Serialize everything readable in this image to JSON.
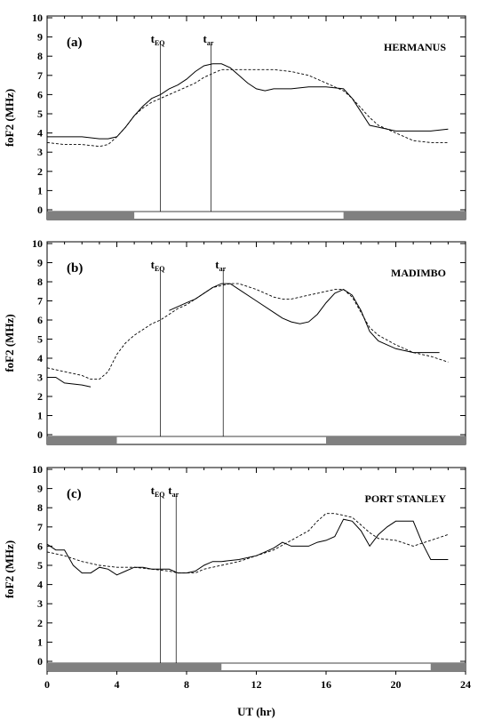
{
  "chart_data": [
    {
      "type": "line",
      "panel_label": "(a)",
      "station": "HERMANUS",
      "ylabel": "foF2 (MHz)",
      "xlabel": "",
      "xlim": [
        0,
        24
      ],
      "ylim": [
        0,
        10
      ],
      "yticks": [
        "0",
        "1",
        "2",
        "3",
        "4",
        "5",
        "6",
        "7",
        "8",
        "9",
        "10"
      ],
      "xticks": [],
      "t_EQ": 6.5,
      "t_ar": 9.4,
      "t_EQ_label": "t",
      "t_EQ_sub": "EQ",
      "t_ar_label": "t",
      "t_ar_sub": "ar",
      "night_bars": [
        [
          0,
          5.0
        ],
        [
          17.0,
          24
        ]
      ],
      "series": [
        {
          "style": "solid",
          "x": [
            0,
            1,
            2,
            3,
            3.5,
            4,
            4.5,
            5,
            5.5,
            6,
            6.5,
            7,
            7.5,
            8,
            8.5,
            9,
            9.5,
            10,
            10.5,
            11,
            11.5,
            12,
            12.5,
            13,
            14,
            15,
            16,
            17,
            17.5,
            18,
            18.5,
            19,
            19.5,
            20,
            21,
            22,
            23
          ],
          "y": [
            3.8,
            3.8,
            3.8,
            3.7,
            3.7,
            3.8,
            4.3,
            4.9,
            5.4,
            5.8,
            6.0,
            6.3,
            6.5,
            6.8,
            7.2,
            7.5,
            7.6,
            7.6,
            7.4,
            7.0,
            6.6,
            6.3,
            6.2,
            6.3,
            6.3,
            6.4,
            6.4,
            6.3,
            5.8,
            5.1,
            4.4,
            4.3,
            4.2,
            4.1,
            4.1,
            4.1,
            4.2
          ]
        },
        {
          "style": "dashed",
          "x": [
            0,
            1,
            2,
            3,
            3.5,
            4,
            4.5,
            5,
            5.5,
            6,
            6.5,
            7,
            7.5,
            8,
            8.5,
            9,
            9.5,
            10,
            10.5,
            11,
            12,
            13,
            14,
            15,
            16,
            17,
            17.5,
            18,
            18.5,
            19,
            20,
            21,
            22,
            23
          ],
          "y": [
            3.5,
            3.4,
            3.4,
            3.3,
            3.4,
            3.8,
            4.3,
            4.9,
            5.3,
            5.6,
            5.8,
            6.0,
            6.2,
            6.4,
            6.6,
            6.9,
            7.1,
            7.3,
            7.3,
            7.3,
            7.3,
            7.3,
            7.2,
            7.0,
            6.6,
            6.2,
            5.8,
            5.3,
            4.8,
            4.4,
            4.0,
            3.6,
            3.5,
            3.5
          ]
        }
      ]
    },
    {
      "type": "line",
      "panel_label": "(b)",
      "station": "MADIMBO",
      "ylabel": "foF2 (MHz)",
      "xlabel": "",
      "xlim": [
        0,
        24
      ],
      "ylim": [
        0,
        10
      ],
      "yticks": [
        "0",
        "1",
        "2",
        "3",
        "4",
        "5",
        "6",
        "7",
        "8",
        "9",
        "10"
      ],
      "xticks": [],
      "t_EQ": 6.5,
      "t_ar": 10.1,
      "t_EQ_label": "t",
      "t_EQ_sub": "EQ",
      "t_ar_label": "t",
      "t_ar_sub": "ar",
      "night_bars": [
        [
          0,
          4.0
        ],
        [
          16.0,
          24
        ]
      ],
      "series": [
        {
          "style": "solid",
          "x": [
            0,
            0.5,
            1,
            2,
            2.5
          ],
          "y": [
            3.0,
            3.0,
            2.7,
            2.6,
            2.5
          ]
        },
        {
          "style": "solid",
          "x": [
            7,
            7.5,
            8,
            8.5,
            9,
            9.5,
            10,
            10.5,
            11,
            12,
            13,
            13.5,
            14,
            14.5,
            15,
            15.5,
            16,
            16.5,
            17,
            17.5,
            18,
            18.5,
            19,
            20,
            21,
            22,
            22.5
          ],
          "y": [
            6.5,
            6.7,
            6.9,
            7.1,
            7.4,
            7.7,
            7.9,
            7.9,
            7.6,
            7.0,
            6.4,
            6.1,
            5.9,
            5.8,
            5.9,
            6.3,
            6.9,
            7.4,
            7.6,
            7.3,
            6.5,
            5.4,
            4.9,
            4.5,
            4.3,
            4.3,
            4.3
          ]
        },
        {
          "style": "dashed",
          "x": [
            0,
            1,
            2,
            2.5,
            3,
            3.5,
            4,
            4.5,
            5,
            5.5,
            6,
            6.5,
            7,
            7.5,
            8,
            8.5,
            9,
            9.5,
            10,
            10.5,
            11,
            12,
            13,
            13.5,
            14,
            15,
            16,
            16.5,
            17,
            17.5,
            18,
            18.5,
            19,
            20,
            21,
            22,
            23
          ],
          "y": [
            3.5,
            3.3,
            3.1,
            2.9,
            2.9,
            3.3,
            4.2,
            4.8,
            5.2,
            5.5,
            5.8,
            6.0,
            6.3,
            6.6,
            6.8,
            7.1,
            7.4,
            7.7,
            7.8,
            7.9,
            7.9,
            7.6,
            7.2,
            7.1,
            7.1,
            7.3,
            7.5,
            7.6,
            7.6,
            7.2,
            6.4,
            5.6,
            5.2,
            4.7,
            4.3,
            4.1,
            3.8
          ]
        }
      ]
    },
    {
      "type": "line",
      "panel_label": "(c)",
      "station": "PORT STANLEY",
      "ylabel": "foF2 (MHz)",
      "xlabel": "UT (hr)",
      "xlim": [
        0,
        24
      ],
      "ylim": [
        0,
        10
      ],
      "yticks": [
        "0",
        "1",
        "2",
        "3",
        "4",
        "5",
        "6",
        "7",
        "8",
        "9",
        "10"
      ],
      "xticks": [
        "0",
        "4",
        "8",
        "12",
        "16",
        "20",
        "24"
      ],
      "t_EQ": 6.5,
      "t_ar": 7.4,
      "t_EQ_label": "t",
      "t_EQ_sub": "EQ",
      "t_ar_label": "t",
      "t_ar_sub": "ar",
      "night_bars": [
        [
          0,
          10.0
        ],
        [
          22.0,
          24
        ]
      ],
      "series": [
        {
          "style": "solid",
          "x": [
            0,
            0.5,
            1,
            1.5,
            2,
            2.5,
            3,
            3.5,
            4,
            4.5,
            5,
            5.5,
            6,
            6.5,
            7,
            7.5,
            8,
            8.5,
            9,
            9.5,
            10,
            11,
            12,
            12.5,
            13,
            13.5,
            14,
            14.5,
            15,
            15.5,
            16,
            16.5,
            17,
            17.5,
            18,
            18.5,
            19,
            19.5,
            20,
            21,
            21.5,
            22,
            22.5,
            23
          ],
          "y": [
            6.1,
            5.8,
            5.8,
            5.0,
            4.6,
            4.6,
            4.9,
            4.8,
            4.5,
            4.7,
            4.9,
            4.9,
            4.8,
            4.8,
            4.8,
            4.6,
            4.6,
            4.7,
            5.0,
            5.2,
            5.2,
            5.3,
            5.5,
            5.7,
            5.9,
            6.2,
            6.0,
            6.0,
            6.0,
            6.2,
            6.3,
            6.5,
            7.4,
            7.3,
            6.8,
            6.0,
            6.6,
            7.0,
            7.3,
            7.3,
            6.2,
            5.3,
            5.3,
            5.3
          ]
        },
        {
          "style": "dashed",
          "x": [
            0,
            1,
            2,
            3,
            4,
            5,
            6,
            7,
            7.5,
            8,
            8.5,
            9,
            10,
            11,
            12,
            13,
            14,
            15,
            15.5,
            16,
            16.5,
            17,
            17.5,
            18,
            18.5,
            19,
            20,
            21,
            22,
            23
          ],
          "y": [
            5.7,
            5.5,
            5.2,
            5.0,
            4.9,
            4.9,
            4.8,
            4.7,
            4.6,
            4.6,
            4.6,
            4.8,
            5.0,
            5.2,
            5.5,
            5.8,
            6.3,
            6.8,
            7.3,
            7.7,
            7.7,
            7.6,
            7.5,
            7.1,
            6.7,
            6.4,
            6.3,
            6.0,
            6.3,
            6.6
          ]
        }
      ]
    }
  ]
}
